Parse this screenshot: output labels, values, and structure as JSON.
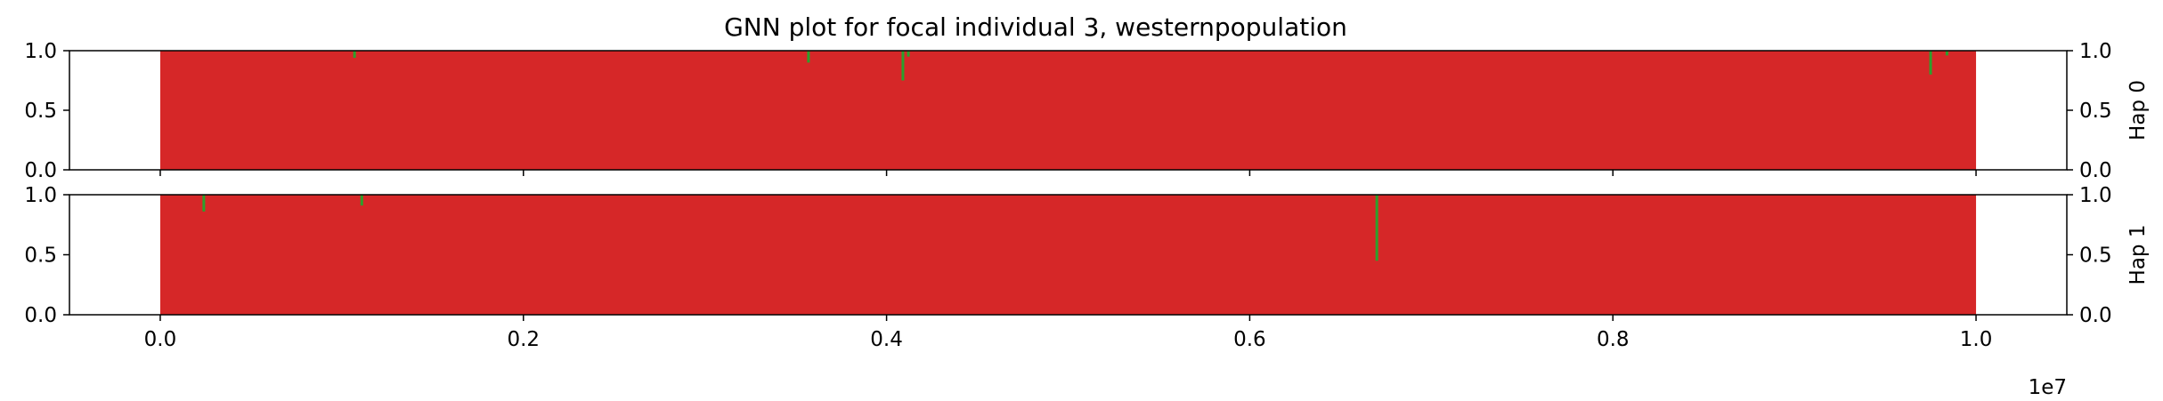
{
  "chart_data": {
    "type": "area",
    "title": "GNN plot for focal individual 3, westernpopulation",
    "x_offset_label": "1e7",
    "xlim": [
      -0.05,
      1.05
    ],
    "x_ticks": [
      0.0,
      0.2,
      0.4,
      0.6,
      0.8,
      1.0
    ],
    "x_tick_labels": [
      "0.0",
      "0.2",
      "0.4",
      "0.6",
      "0.8",
      "1.0"
    ],
    "ylim": [
      0,
      1
    ],
    "y_ticks": [
      0.0,
      0.5,
      1.0
    ],
    "y_tick_labels": [
      "0.0",
      "0.5",
      "1.0"
    ],
    "colors": {
      "red_population": "#d62728",
      "green_population": "#2ca02c"
    },
    "panels": [
      {
        "label": "Hap 0",
        "x_range": [
          0.0,
          1.0
        ],
        "red_base": 1.0,
        "green_dips": [
          {
            "x": 0.107,
            "value": 0.06
          },
          {
            "x": 0.357,
            "value": 0.1
          },
          {
            "x": 0.409,
            "value": 0.25
          },
          {
            "x": 0.412,
            "value": 0.05
          },
          {
            "x": 0.975,
            "value": 0.2
          },
          {
            "x": 0.984,
            "value": 0.04
          }
        ]
      },
      {
        "label": "Hap 1",
        "x_range": [
          0.0,
          1.0
        ],
        "red_base": 1.0,
        "green_dips": [
          {
            "x": 0.024,
            "value": 0.14
          },
          {
            "x": 0.111,
            "value": 0.09
          },
          {
            "x": 0.67,
            "value": 0.55
          }
        ]
      }
    ]
  }
}
